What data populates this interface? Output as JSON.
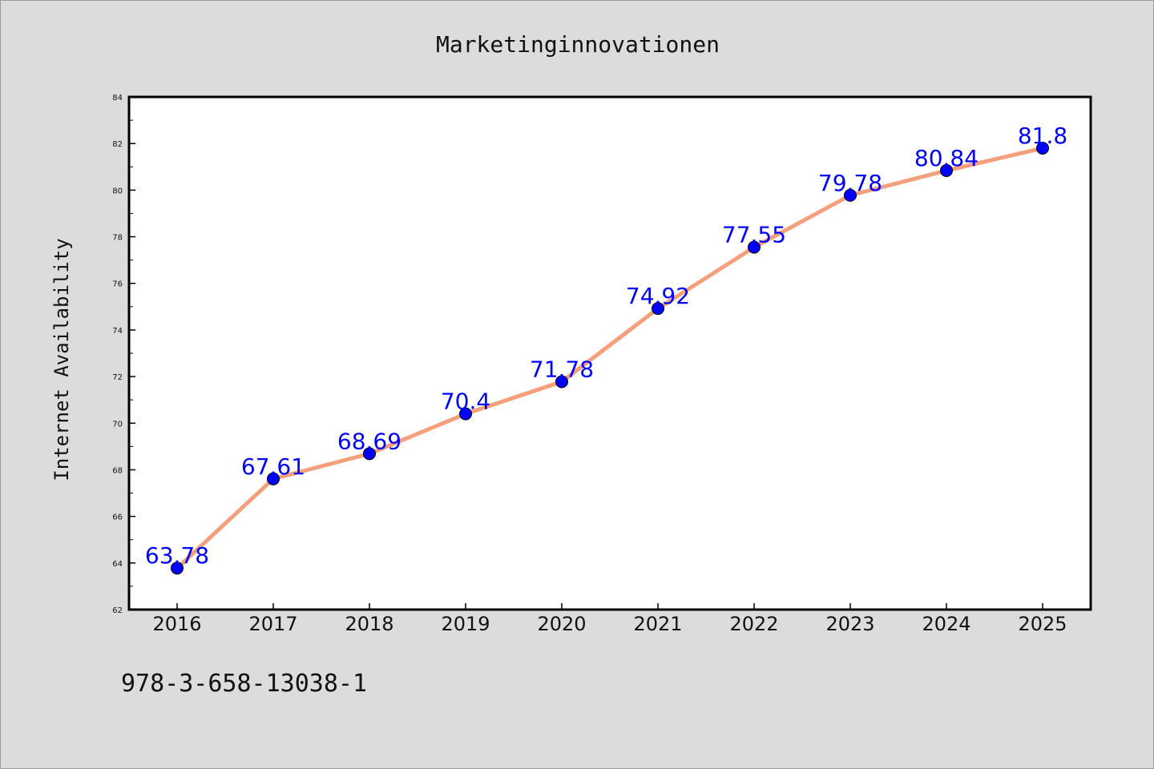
{
  "chart_data": {
    "type": "line",
    "title": "Marketinginnovationen",
    "xlabel": "",
    "ylabel": "Internet Availability",
    "categories": [
      "2016",
      "2017",
      "2018",
      "2019",
      "2020",
      "2021",
      "2022",
      "2023",
      "2024",
      "2025"
    ],
    "values": [
      63.78,
      67.61,
      68.69,
      70.4,
      71.78,
      74.92,
      77.55,
      79.78,
      80.84,
      81.8
    ],
    "data_labels": [
      "63.78",
      "67.61",
      "68.69",
      "70.4",
      "71.78",
      "74.92",
      "77.55",
      "79.78",
      "80.84",
      "81.8"
    ],
    "ylim": [
      62,
      84
    ],
    "yticks": [
      "62",
      "64",
      "66",
      "68",
      "70",
      "72",
      "74",
      "76",
      "78",
      "80",
      "82",
      "84"
    ],
    "grid": false,
    "line_color": "#f4a07c",
    "marker_color": "#0000ff",
    "label_color": "#0000ff"
  },
  "footer": {
    "code": "978-3-658-13038-1"
  }
}
